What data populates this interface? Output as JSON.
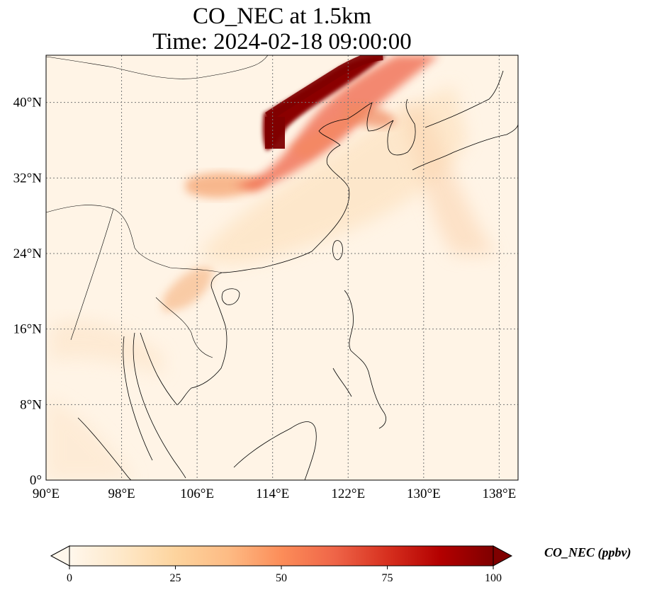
{
  "title": {
    "line1": "CO_NEC at 1.5km",
    "line2": "Time: 2024-02-18 09:00:00"
  },
  "map": {
    "lon_range": [
      90,
      140
    ],
    "lat_range": [
      0,
      45
    ],
    "lon_ticks": [
      "90°E",
      "98°E",
      "106°E",
      "114°E",
      "122°E",
      "130°E",
      "138°E"
    ],
    "lat_ticks": [
      "0°",
      "8°N",
      "16°N",
      "24°N",
      "32°N",
      "40°N"
    ],
    "gridlines": "dotted"
  },
  "colorbar": {
    "label": "CO_NEC (ppbv)",
    "ticks": [
      "0",
      "25",
      "50",
      "75",
      "100"
    ],
    "range": [
      0,
      100
    ],
    "extend": "both",
    "colormap": "OrRd",
    "colors": [
      "#fff7ec",
      "#fee8c8",
      "#fdd49e",
      "#fdbb84",
      "#fc8d59",
      "#ef6548",
      "#d7301f",
      "#b30000",
      "#7f0000"
    ]
  }
}
